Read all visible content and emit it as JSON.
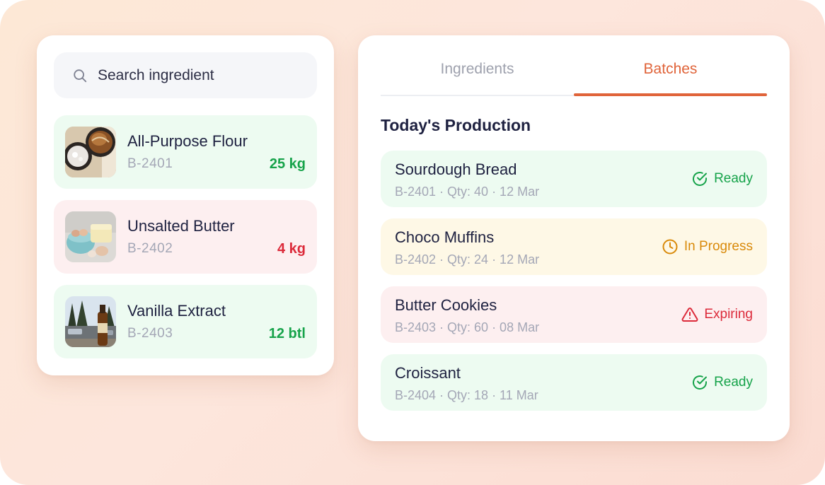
{
  "search": {
    "placeholder": "Search ingredient"
  },
  "ingredients": [
    {
      "name": "All-Purpose Flour",
      "code": "B-2401",
      "qty": "25 kg",
      "status_color": "#16a34a",
      "thumbnail": "bread-and-flour-photo"
    },
    {
      "name": "Unsalted Butter",
      "code": "B-2402",
      "qty": "4 kg",
      "status_color": "#dc2a3a",
      "thumbnail": "eggs-and-butter-photo"
    },
    {
      "name": "Vanilla Extract",
      "code": "B-2403",
      "qty": "12 btl",
      "status_color": "#16a34a",
      "thumbnail": "bottle-and-trees-photo"
    }
  ],
  "tabs": [
    {
      "label": "Ingredients",
      "active": false
    },
    {
      "label": "Batches",
      "active": true
    }
  ],
  "production": {
    "title": "Today's Production",
    "batches": [
      {
        "name": "Sourdough Bread",
        "meta": "B-2401 · Qty: 40 · 12 Mar",
        "status": "Ready",
        "status_icon": "check-circle-icon"
      },
      {
        "name": "Choco Muffins",
        "meta": "B-2402 · Qty: 24 · 12 Mar",
        "status": "In Progress",
        "status_icon": "clock-icon"
      },
      {
        "name": "Butter Cookies",
        "meta": "B-2403 · Qty: 60 · 08 Mar",
        "status": "Expiring",
        "status_icon": "warning-icon"
      },
      {
        "name": "Croissant",
        "meta": "B-2404 · Qty: 18 · 11 Mar",
        "status": "Ready",
        "status_icon": "check-circle-icon"
      }
    ]
  },
  "colors": {
    "accent": "#e0643a",
    "ready": "#16a34a",
    "in_progress": "#d98a0a",
    "expiring": "#dc2a3a"
  }
}
